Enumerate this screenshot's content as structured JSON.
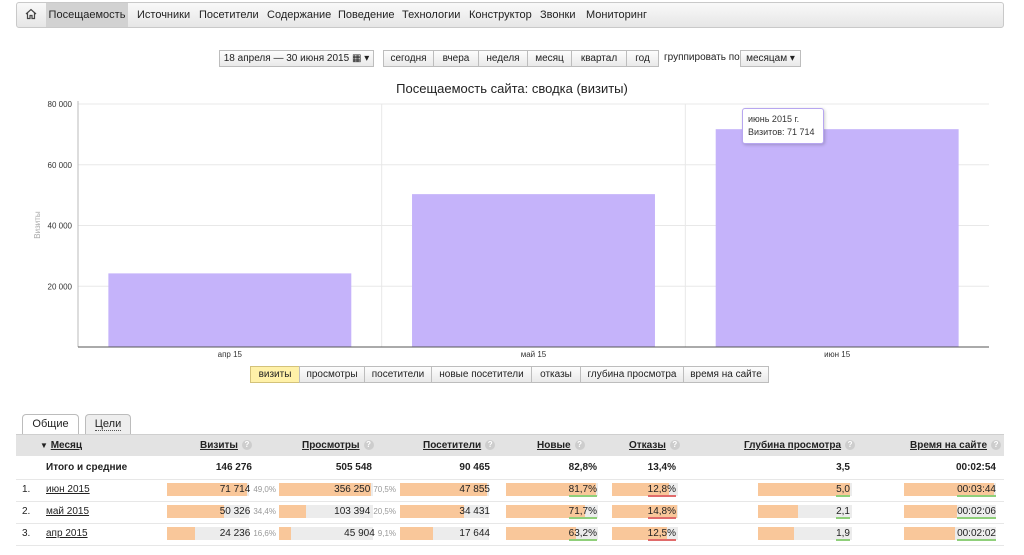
{
  "nav": {
    "items": [
      {
        "label": "Посещаемость",
        "active": true
      },
      {
        "label": "Источники"
      },
      {
        "label": "Посетители"
      },
      {
        "label": "Содержание"
      },
      {
        "label": "Поведение"
      },
      {
        "label": "Технологии"
      },
      {
        "label": "Конструктор"
      },
      {
        "label": "Звонки"
      },
      {
        "label": "Мониторинг"
      }
    ]
  },
  "controls": {
    "date_range": "18 апреля — 30 июня 2015",
    "periods": [
      "сегодня",
      "вчера",
      "неделя",
      "месяц",
      "квартал",
      "год"
    ],
    "group_label": "группировать по",
    "group_value": "месяцам"
  },
  "chart_data": {
    "type": "bar",
    "title": "Посещаемость сайта: сводка (визиты)",
    "ylabel": "Визиты",
    "categories": [
      "апр 15",
      "май 15",
      "июн 15"
    ],
    "values": [
      24236,
      50326,
      71714
    ],
    "ylim": [
      0,
      80000
    ],
    "yticks": [
      20000,
      40000,
      60000,
      80000
    ],
    "ytick_labels": [
      "20 000",
      "40 000",
      "60 000",
      "80 000"
    ],
    "color": "#c5b3fa",
    "grid": true,
    "tooltip": {
      "title": "июнь 2015 г.",
      "text": "Визитов: 71 714"
    }
  },
  "metrics": [
    "визиты",
    "просмотры",
    "посетители",
    "новые посетители",
    "отказы",
    "глубина просмотра",
    "время на сайте"
  ],
  "tabs": [
    "Общие",
    "Цели"
  ],
  "table": {
    "headers": [
      "Месяц",
      "Визиты",
      "Просмотры",
      "Посетители",
      "Новые",
      "Отказы",
      "Глубина просмотра",
      "Время на сайте"
    ],
    "totals": {
      "label": "Итого и средние",
      "visits": "146 276",
      "views": "505 548",
      "visitors": "90 465",
      "new": "82,8%",
      "bounce": "13,4%",
      "depth": "3,5",
      "time": "00:02:54"
    },
    "rows": [
      {
        "n": "1.",
        "month": "июн 2015",
        "visits": "71 714",
        "visits_pct": "49,0%",
        "views": "356 250",
        "views_pct": "70,5%",
        "visitors": "47 855",
        "new": "81,7%",
        "bounce": "12,8%",
        "depth": "5,0",
        "time": "00:03:44",
        "fill": {
          "visits": 0.98,
          "views": 0.98,
          "visitors": 0.98,
          "new": 0.98,
          "bounce": 0.86,
          "depth": 0.98,
          "time": 0.98
        }
      },
      {
        "n": "2.",
        "month": "май 2015",
        "visits": "50 326",
        "visits_pct": "34,4%",
        "views": "103 394",
        "views_pct": "20,5%",
        "visitors": "34 431",
        "new": "71,7%",
        "bounce": "14,8%",
        "depth": "2,1",
        "time": "00:02:06",
        "fill": {
          "visits": 0.7,
          "views": 0.29,
          "visitors": 0.72,
          "new": 0.86,
          "bounce": 0.98,
          "depth": 0.43,
          "time": 0.58
        }
      },
      {
        "n": "3.",
        "month": "апр 2015",
        "visits": "24 236",
        "visits_pct": "16,6%",
        "views": "45 904",
        "views_pct": "9,1%",
        "visitors": "17 644",
        "new": "63,2%",
        "bounce": "12,5%",
        "depth": "1,9",
        "time": "00:02:02",
        "fill": {
          "visits": 0.34,
          "views": 0.13,
          "visitors": 0.37,
          "new": 0.76,
          "bounce": 0.84,
          "depth": 0.38,
          "time": 0.55
        }
      }
    ],
    "colors": {
      "bar": "#f9c79a",
      "track": "#ececec",
      "good": "#8fcf7a",
      "bad": "#e06b6b"
    }
  }
}
